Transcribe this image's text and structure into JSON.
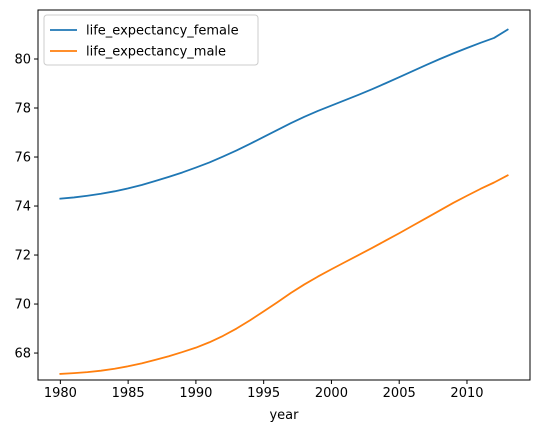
{
  "chart_data": {
    "type": "line",
    "title": "",
    "xlabel": "year",
    "ylabel": "",
    "xlim": [
      1978.35,
      2014.65
    ],
    "ylim": [
      66.9,
      82.0
    ],
    "xticks": [
      1980,
      1985,
      1990,
      1995,
      2000,
      2005,
      2010
    ],
    "yticks": [
      68,
      70,
      72,
      74,
      76,
      78,
      80
    ],
    "grid": false,
    "legend_position": "upper left",
    "x": [
      1980,
      1981,
      1982,
      1983,
      1984,
      1985,
      1986,
      1987,
      1988,
      1989,
      1990,
      1991,
      1992,
      1993,
      1994,
      1995,
      1996,
      1997,
      1998,
      1999,
      2000,
      2001,
      2002,
      2003,
      2004,
      2005,
      2006,
      2007,
      2008,
      2009,
      2010,
      2011,
      2012,
      2013
    ],
    "series": [
      {
        "name": "life_expectancy_female",
        "color": "#1f77b4",
        "values": [
          74.3,
          74.35,
          74.42,
          74.5,
          74.6,
          74.72,
          74.86,
          75.02,
          75.19,
          75.37,
          75.57,
          75.78,
          76.02,
          76.27,
          76.54,
          76.82,
          77.1,
          77.38,
          77.64,
          77.88,
          78.1,
          78.32,
          78.54,
          78.77,
          79.01,
          79.26,
          79.51,
          79.76,
          80.0,
          80.23,
          80.45,
          80.66,
          80.86,
          81.2
        ]
      },
      {
        "name": "life_expectancy_male",
        "color": "#ff7f0e",
        "values": [
          67.15,
          67.18,
          67.22,
          67.28,
          67.36,
          67.46,
          67.58,
          67.72,
          67.87,
          68.04,
          68.22,
          68.44,
          68.7,
          69.0,
          69.34,
          69.7,
          70.07,
          70.45,
          70.8,
          71.12,
          71.42,
          71.71,
          72.0,
          72.29,
          72.59,
          72.89,
          73.2,
          73.51,
          73.82,
          74.13,
          74.42,
          74.7,
          74.96,
          75.25
        ]
      }
    ]
  }
}
